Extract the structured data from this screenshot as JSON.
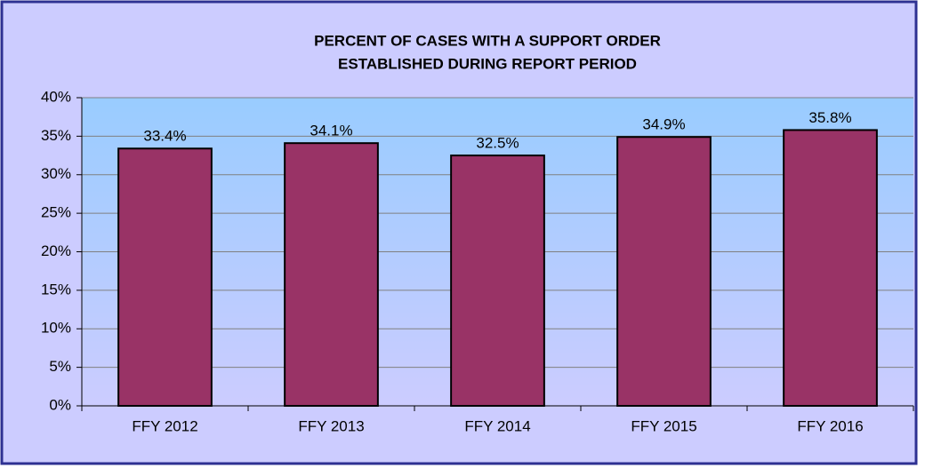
{
  "chart_data": {
    "type": "bar",
    "title": [
      "PERCENT OF CASES WITH A SUPPORT ORDER",
      "ESTABLISHED DURING REPORT PERIOD"
    ],
    "categories": [
      "FFY 2012",
      "FFY 2013",
      "FFY 2014",
      "FFY 2015",
      "FFY 2016"
    ],
    "values": [
      33.4,
      34.1,
      32.5,
      34.9,
      35.8
    ],
    "value_labels": [
      "33.4%",
      "34.1%",
      "32.5%",
      "34.9%",
      "35.8%"
    ],
    "color": "#993366",
    "ylim": [
      0,
      40
    ],
    "yticks": [
      {
        "value": 0,
        "label": "0%"
      },
      {
        "value": 5,
        "label": "5%"
      },
      {
        "value": 10,
        "label": "10%"
      },
      {
        "value": 15,
        "label": "15%"
      },
      {
        "value": 20,
        "label": "20%"
      },
      {
        "value": 25,
        "label": "25%"
      },
      {
        "value": 30,
        "label": "30%"
      },
      {
        "value": 35,
        "label": "35%"
      },
      {
        "value": 40,
        "label": "40%"
      }
    ],
    "grid": true
  }
}
